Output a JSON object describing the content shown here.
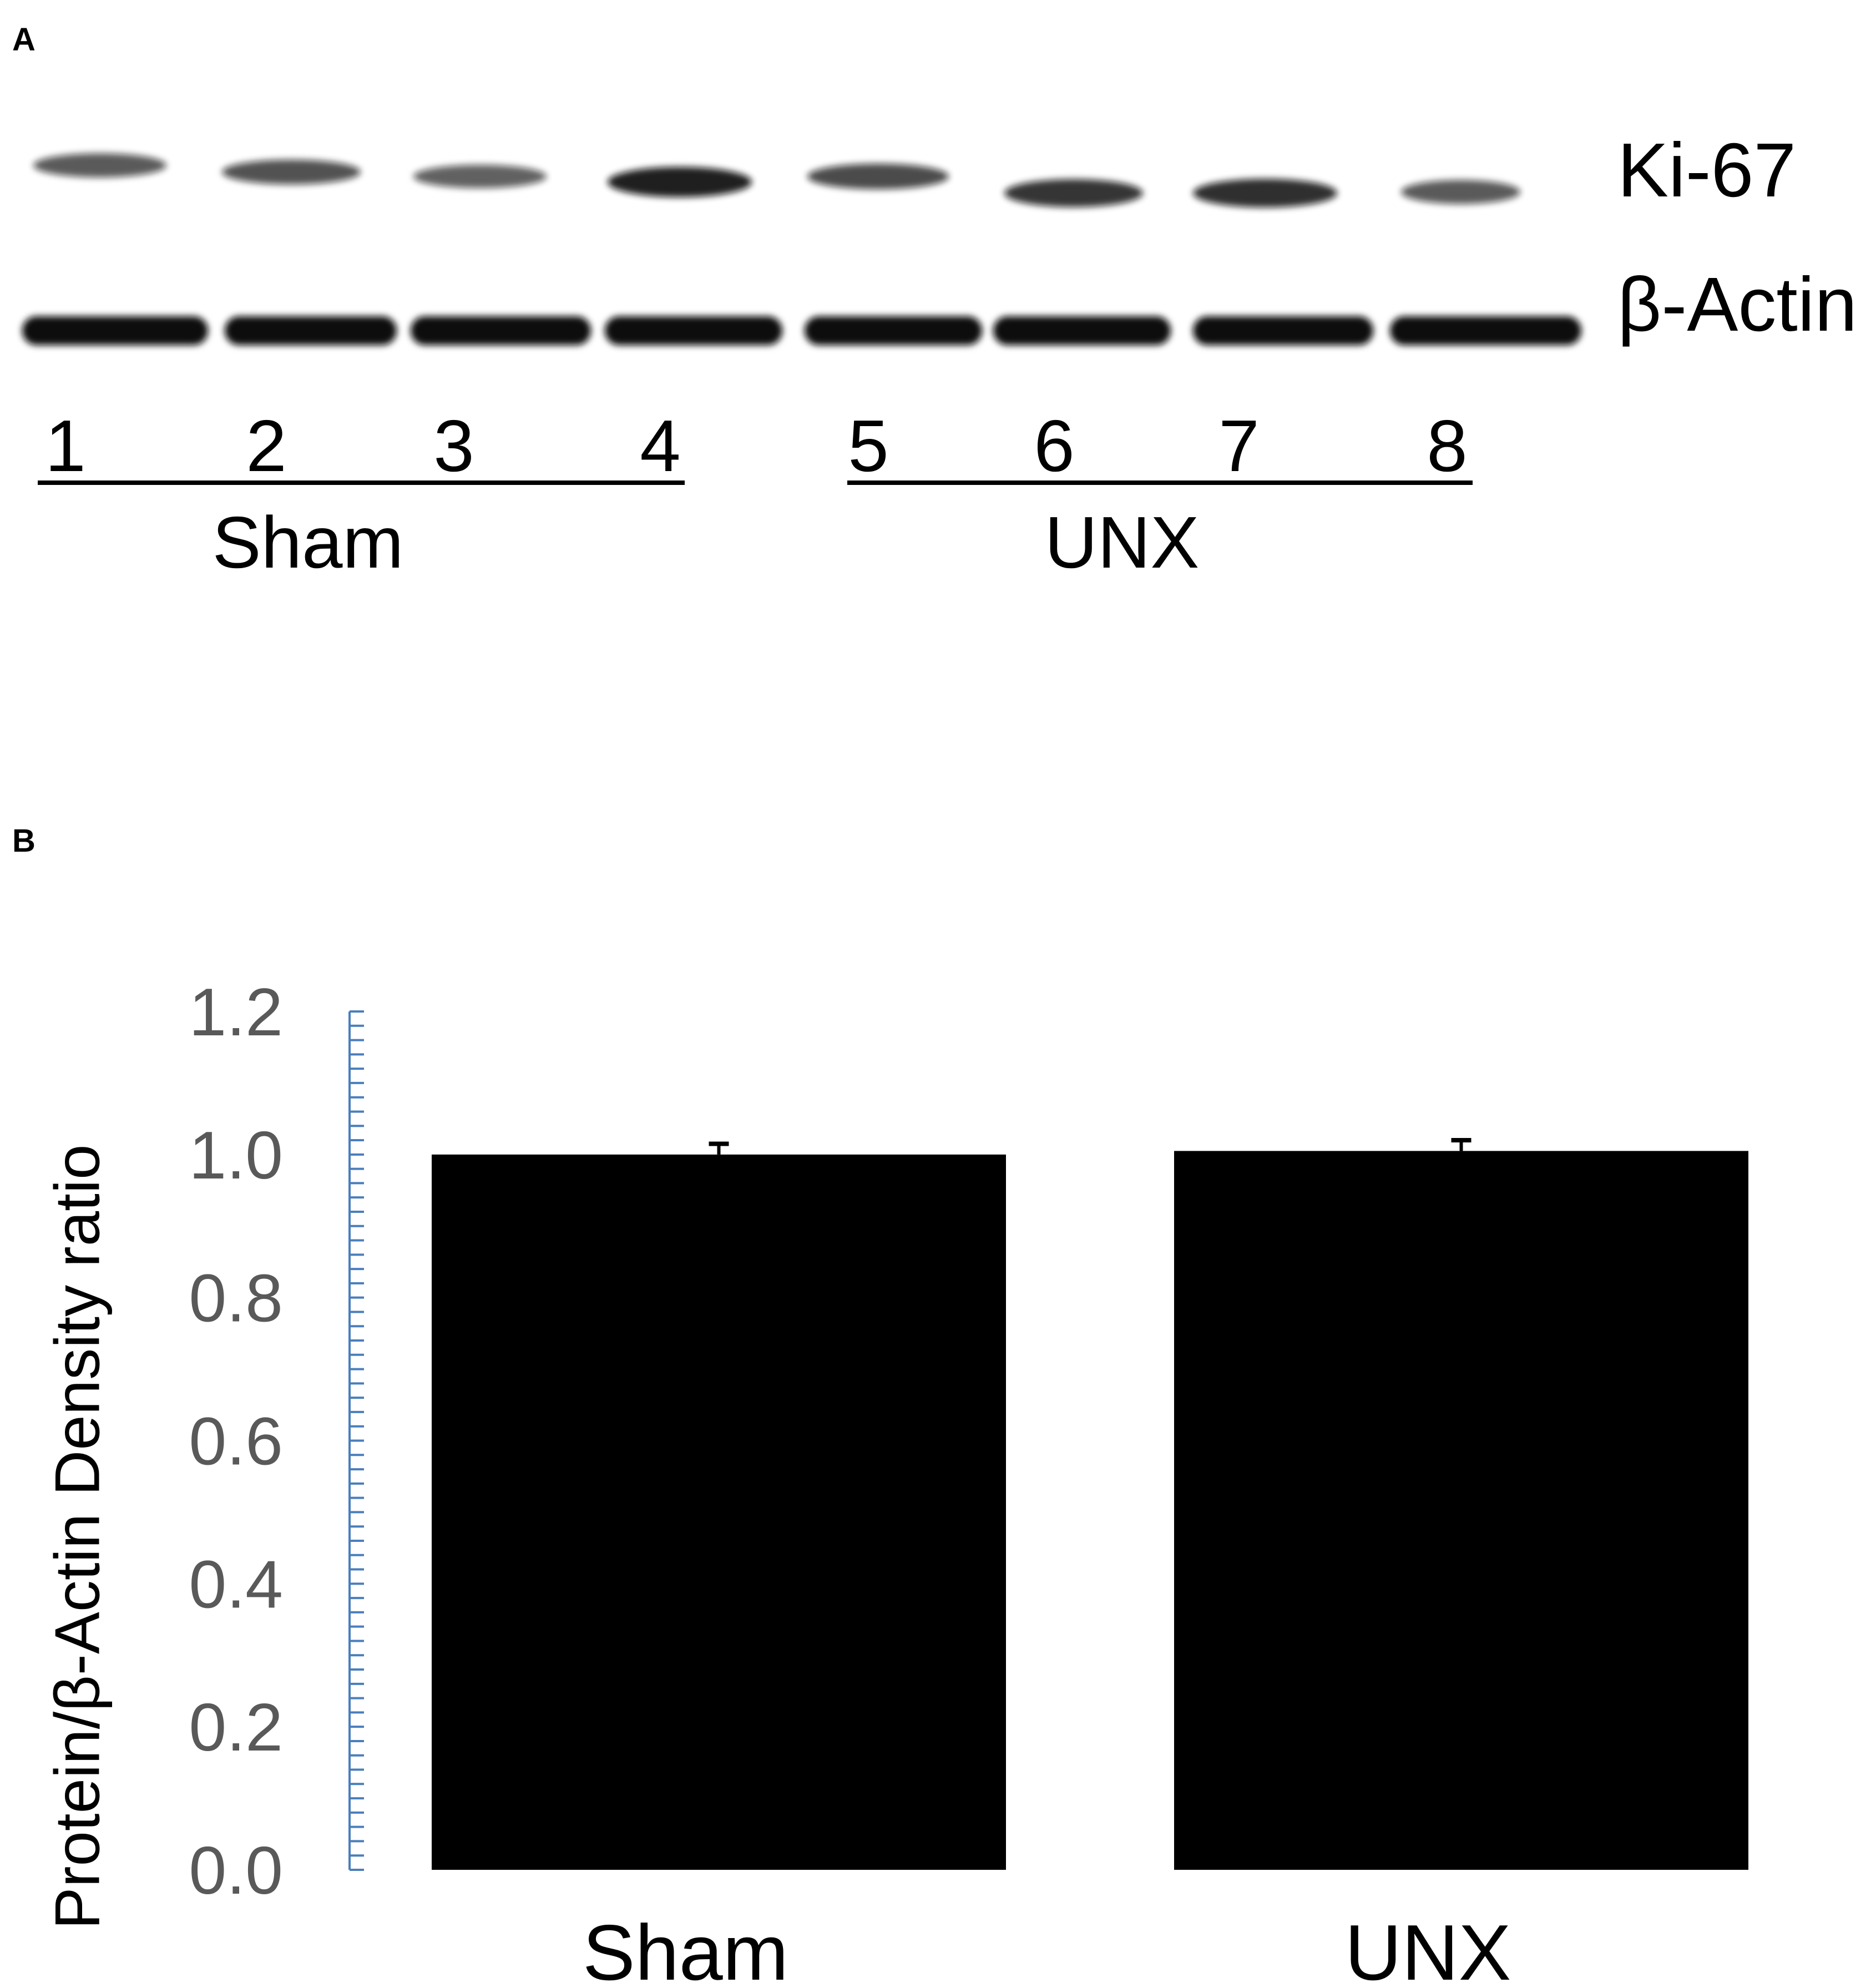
{
  "panel_a": {
    "letter": "A",
    "band_labels": [
      "Ki-67",
      "β-Actin"
    ],
    "lanes": [
      "1",
      "2",
      "3",
      "4",
      "5",
      "6",
      "7",
      "8"
    ],
    "groups": [
      "Sham",
      "UNX"
    ],
    "ki67_intensity": [
      0.55,
      0.6,
      0.5,
      0.95,
      0.65,
      0.8,
      0.85,
      0.55
    ]
  },
  "panel_b": {
    "letter": "B"
  },
  "chart_data": {
    "type": "bar",
    "categories": [
      "Sham",
      "UNX"
    ],
    "values": [
      1.0,
      1.005
    ],
    "error": [
      0.015,
      0.015
    ],
    "ylabel": "Protein/β-Actin Density ratio",
    "ylim": [
      0,
      1.2
    ],
    "yticks": [
      "0.0",
      "0.2",
      "0.4",
      "0.6",
      "0.8",
      "1.0",
      "1.2"
    ],
    "bar_color": "#000000",
    "axis_color": "#4a7ebb",
    "tick_label_color": "#595959",
    "grid": false,
    "legend": "none"
  }
}
